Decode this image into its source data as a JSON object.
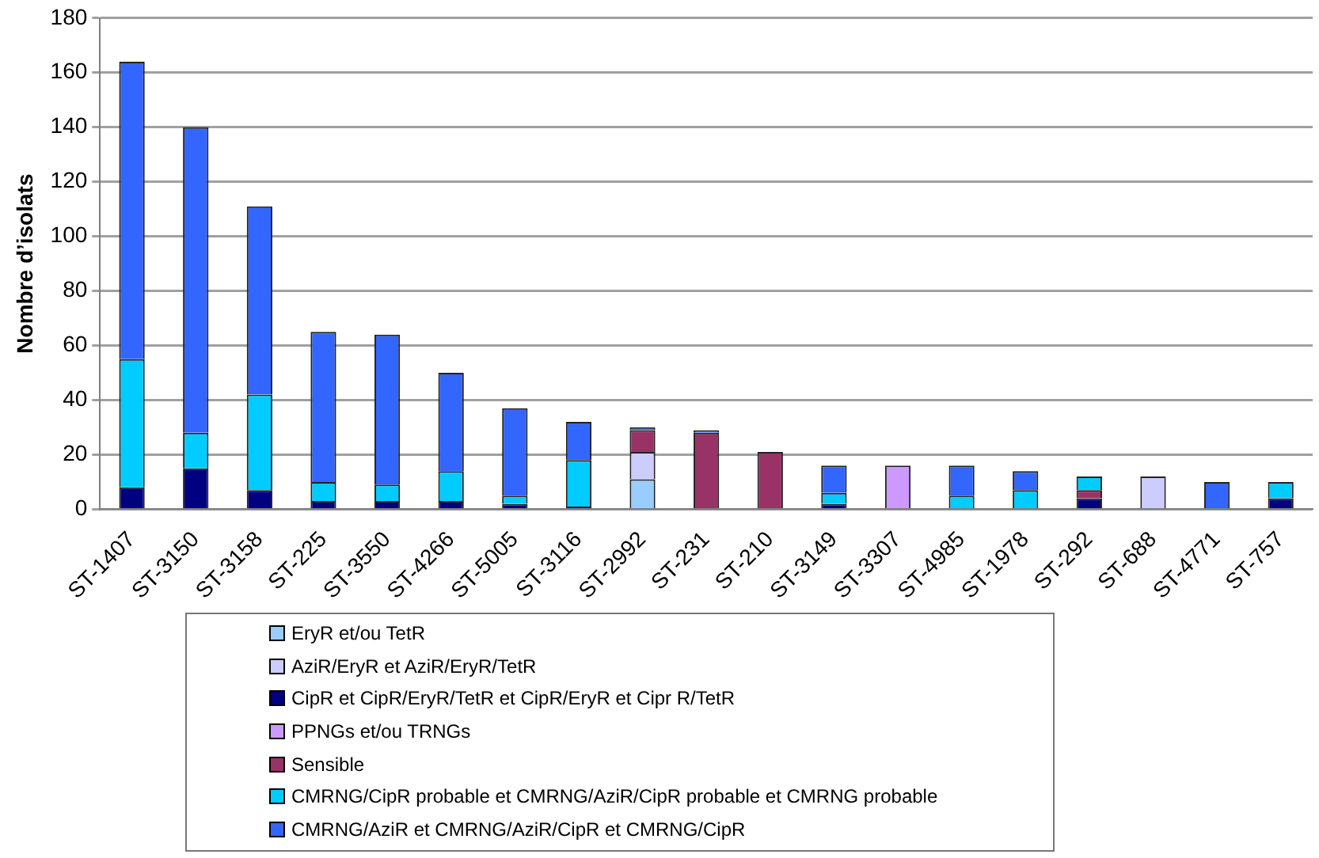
{
  "chart_data": {
    "type": "bar",
    "stacked": true,
    "ylabel": "Nombre d’isolats",
    "categories": [
      "ST-1407",
      "ST-3150",
      "ST-3158",
      "ST-225",
      "ST-3550",
      "ST-4266",
      "ST-5005",
      "ST-3116",
      "ST-2992",
      "ST-231",
      "ST-210",
      "ST-3149",
      "ST-3307",
      "ST-4985",
      "ST-1978",
      "ST-292",
      "ST-688",
      "ST-4771",
      "ST-757"
    ],
    "series": [
      {
        "name": "EryR et/ou TetR",
        "color": "#99ccff",
        "values": [
          0,
          0,
          0,
          0,
          0,
          0,
          0,
          0,
          11,
          0,
          0,
          0,
          0,
          0,
          0,
          0,
          0,
          0,
          0
        ]
      },
      {
        "name": "AziR/EryR et AziR/EryR/TetR",
        "color": "#ccccff",
        "values": [
          0,
          0,
          0,
          0,
          0,
          0,
          0,
          0,
          10,
          0,
          0,
          0,
          0,
          0,
          0,
          0,
          12,
          0,
          0
        ]
      },
      {
        "name": "CipR et CipR/EryR/TetR et CipR/EryR et Cipr R/TetR",
        "color": "#000080",
        "values": [
          8,
          15,
          7,
          3,
          3,
          3,
          2,
          1,
          0,
          0,
          0,
          2,
          0,
          0,
          0,
          4,
          0,
          0,
          4
        ]
      },
      {
        "name": "PPNGs et/ou TRNGs",
        "color": "#cc99ff",
        "values": [
          0,
          0,
          0,
          0,
          0,
          0,
          0,
          0,
          0,
          0,
          0,
          0,
          16,
          0,
          0,
          0,
          0,
          0,
          0
        ]
      },
      {
        "name": "Sensible",
        "color": "#993366",
        "values": [
          0,
          0,
          0,
          0,
          0,
          0,
          0,
          0,
          8,
          28,
          21,
          0,
          0,
          0,
          0,
          3,
          0,
          0,
          0
        ]
      },
      {
        "name": "CMRNG/CipR probable et CMRNG/AziR/CipR probable et CMRNG probable",
        "color": "#00ccff",
        "values": [
          47,
          13,
          35,
          7,
          6,
          11,
          3,
          17,
          0,
          0,
          0,
          4,
          0,
          5,
          7,
          5,
          0,
          0,
          6
        ]
      },
      {
        "name": "CMRNG/AziR et CMRNG/AziR/CipR et CMRNG/CipR",
        "color": "#3366ff",
        "values": [
          109,
          112,
          69,
          55,
          55,
          36,
          32,
          14,
          1,
          1,
          0,
          10,
          0,
          11,
          7,
          0,
          0,
          10,
          0
        ]
      }
    ],
    "ylim": [
      0,
      180
    ],
    "yticks": [
      0,
      20,
      40,
      60,
      80,
      100,
      120,
      140,
      160,
      180
    ],
    "grid": "y",
    "legend": "bottom"
  }
}
